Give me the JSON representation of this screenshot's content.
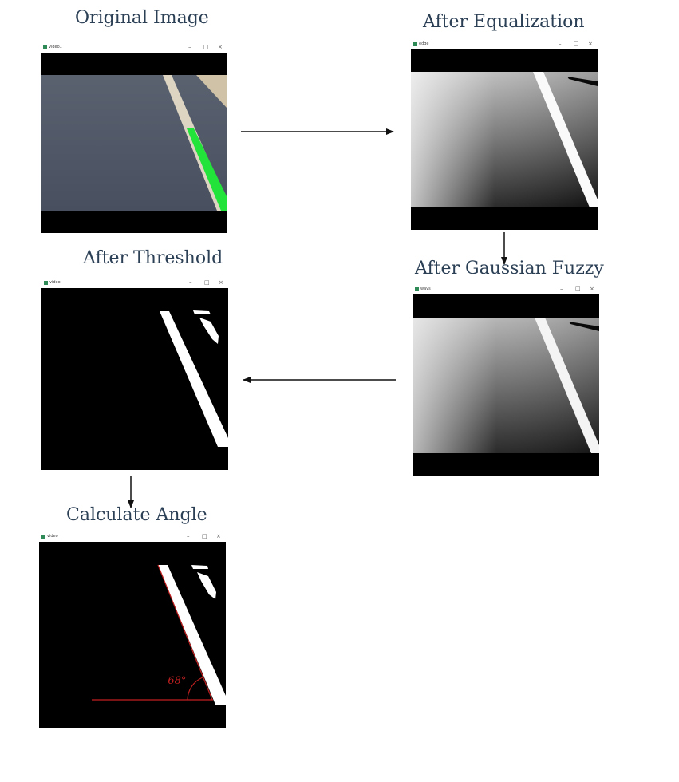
{
  "steps": {
    "original": {
      "label": "Original Image",
      "window_title": "video1"
    },
    "equalization": {
      "label": "After Equalization",
      "window_title": "edge"
    },
    "gaussian": {
      "label": "After Gaussian Fuzzy",
      "window_title": "ways"
    },
    "threshold": {
      "label": "After Threshold",
      "window_title": "video"
    },
    "angle": {
      "label": "Calculate Angle",
      "window_title": "video",
      "angle_annotation": "-68°"
    }
  },
  "window_controls": {
    "minimize": "–",
    "maximize": "□",
    "close": "×"
  },
  "colors": {
    "label_text": "#2b3f55",
    "road": "#4f5764",
    "lane_highlight": "#22e33a",
    "angle_line": "#c22020",
    "arrow": "#111111"
  }
}
